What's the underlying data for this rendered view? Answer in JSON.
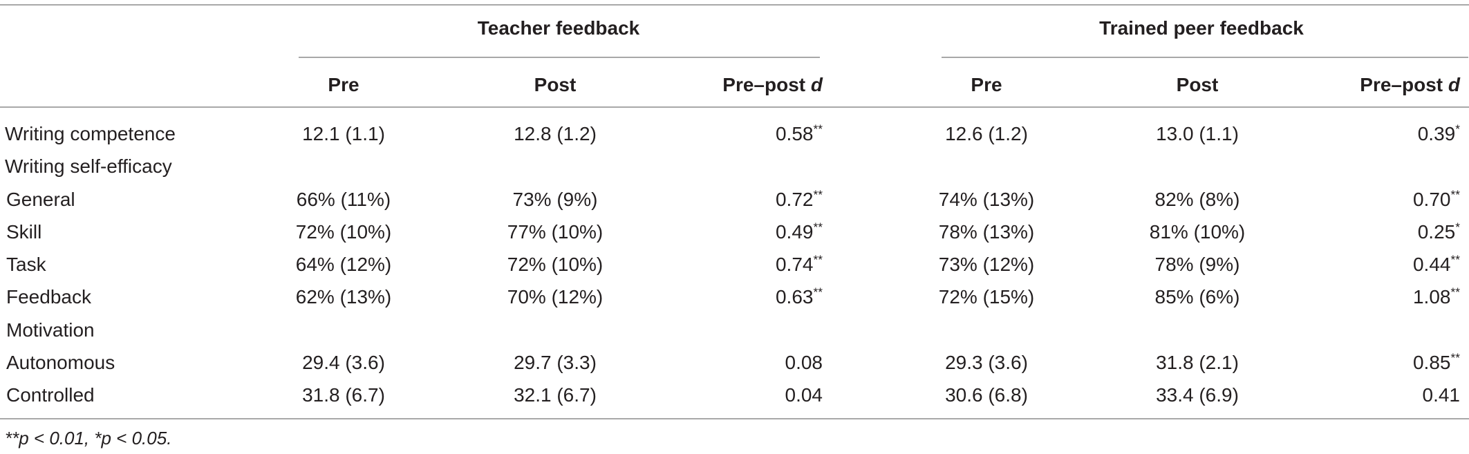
{
  "header": {
    "groups": [
      "Teacher feedback",
      "Trained peer feedback"
    ],
    "subheaders": [
      "Pre",
      "Post",
      "Pre–post ",
      "Pre",
      "Post",
      "Pre–post "
    ],
    "effect_symbol": "d"
  },
  "rows": [
    {
      "label": "Writing competence",
      "cells": [
        "12.1 (1.1)",
        "12.8 (1.2)",
        "0.58**",
        "12.6 (1.2)",
        "13.0 (1.1)",
        "0.39*"
      ]
    },
    {
      "label": "Writing self-efficacy",
      "cells": [
        "",
        "",
        "",
        "",
        "",
        ""
      ]
    },
    {
      "label": "General",
      "cells": [
        "66% (11%)",
        "73% (9%)",
        "0.72**",
        "74% (13%)",
        "82% (8%)",
        "0.70**"
      ]
    },
    {
      "label": "Skill",
      "cells": [
        "72% (10%)",
        "77% (10%)",
        "0.49**",
        "78% (13%)",
        "81% (10%)",
        "0.25*"
      ]
    },
    {
      "label": "Task",
      "cells": [
        "64% (12%)",
        "72% (10%)",
        "0.74**",
        "73% (12%)",
        "78% (9%)",
        "0.44**"
      ]
    },
    {
      "label": "Feedback",
      "cells": [
        "62% (13%)",
        "70% (12%)",
        "0.63**",
        "72% (15%)",
        "85% (6%)",
        "1.08**"
      ]
    },
    {
      "label": "Motivation",
      "cells": [
        "",
        "",
        "",
        "",
        "",
        ""
      ]
    },
    {
      "label": "Autonomous",
      "cells": [
        "29.4 (3.6)",
        "29.7 (3.3)",
        "0.08",
        "29.3 (3.6)",
        "31.8 (2.1)",
        "0.85**"
      ]
    },
    {
      "label": "Controlled",
      "cells": [
        "31.8 (6.7)",
        "32.1 (6.7)",
        "0.04",
        "30.6 (6.8)",
        "33.4 (6.9)",
        "0.41"
      ]
    }
  ],
  "footnote": "**p < 0.01, *p < 0.05."
}
